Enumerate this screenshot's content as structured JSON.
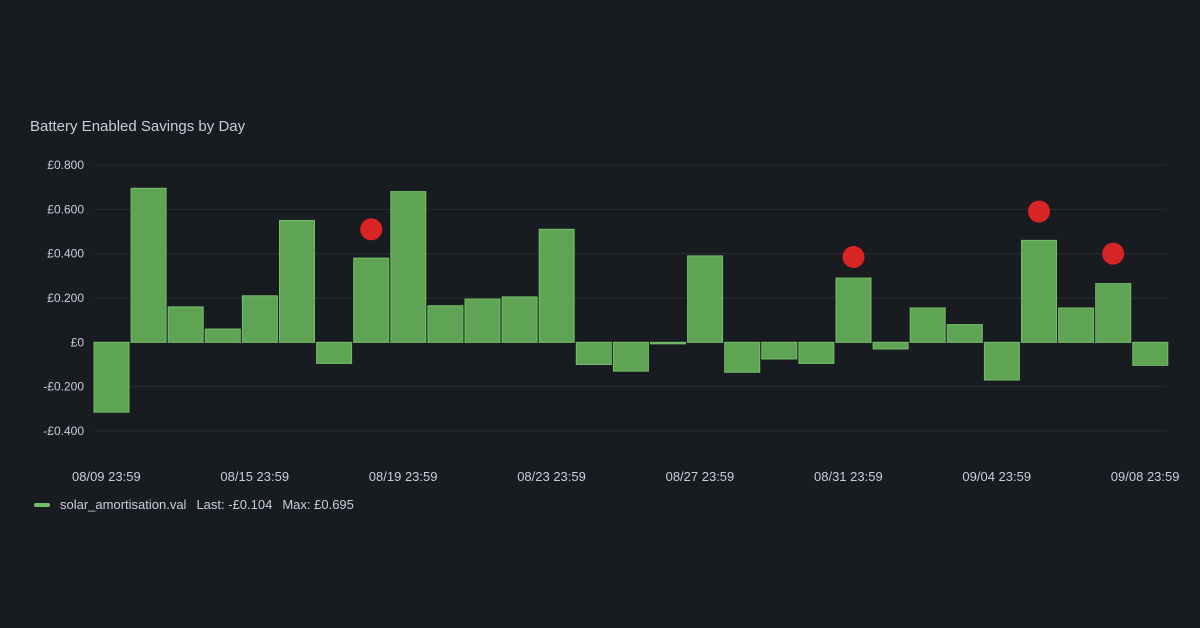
{
  "panel": {
    "title": "Battery Enabled Savings by Day"
  },
  "colors": {
    "background": "#181b1f",
    "bar": "#5fa354",
    "bar_stroke": "#73bf69",
    "marker": "#d92425",
    "grid": "#2a2d33",
    "text": "#ccccdc"
  },
  "legend": {
    "series_name": "solar_amortisation.val",
    "last_label": "Last: -£0.104",
    "max_label": "Max: £0.695",
    "placement": "bottom-left"
  },
  "chart_data": {
    "type": "bar",
    "title": "Battery Enabled Savings by Day",
    "xlabel": "",
    "ylabel": "",
    "ylim": [
      -0.4,
      0.8
    ],
    "grid": true,
    "y_ticks": [
      0.8,
      0.6,
      0.4,
      0.2,
      0,
      -0.2,
      -0.4
    ],
    "y_tick_labels": [
      "£0.800",
      "£0.600",
      "£0.400",
      "£0.200",
      "£0",
      "-£0.200",
      "-£0.400"
    ],
    "x_tick_labels": [
      "08/09 23:59",
      "08/15 23:59",
      "08/19 23:59",
      "08/23 23:59",
      "08/27 23:59",
      "08/31 23:59",
      "09/04 23:59",
      "09/08 23:59"
    ],
    "x_tick_bar_index": [
      0,
      4,
      8,
      12,
      16,
      20,
      24,
      28
    ],
    "series": [
      {
        "name": "solar_amortisation.val",
        "values": [
          -0.315,
          0.695,
          0.16,
          0.06,
          0.21,
          0.55,
          -0.095,
          0.38,
          0.68,
          0.165,
          0.195,
          0.205,
          0.51,
          -0.1,
          -0.13,
          -0.005,
          0.39,
          -0.135,
          -0.075,
          -0.095,
          0.29,
          -0.03,
          0.155,
          0.08,
          -0.17,
          0.46,
          0.155,
          0.265,
          -0.104
        ]
      }
    ],
    "markers": [
      {
        "bar_index": 7,
        "value": 0.51
      },
      {
        "bar_index": 20,
        "value": 0.385
      },
      {
        "bar_index": 25,
        "value": 0.59
      },
      {
        "bar_index": 27,
        "value": 0.4
      }
    ]
  }
}
